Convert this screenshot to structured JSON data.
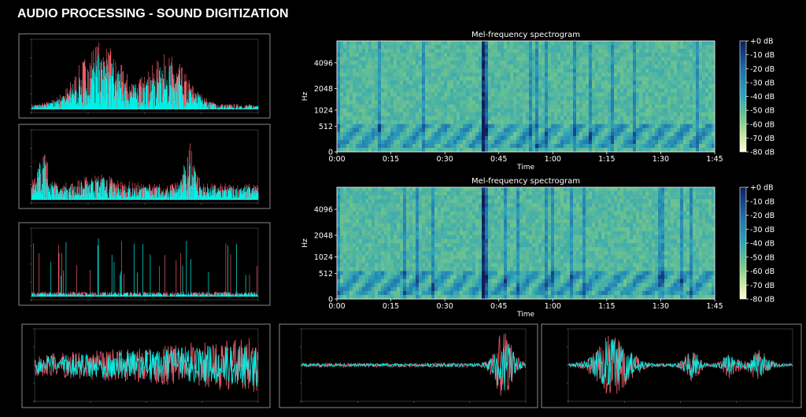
{
  "header": {
    "title": "AUDIO PROCESSING - SOUND DIGITIZATION"
  },
  "spectrograms": [
    {
      "title": "Mel-frequency spectrogram",
      "x_label": "Time",
      "y_label": "Hz",
      "y_scale": "mel",
      "xlim": [
        0,
        105
      ],
      "xticks": [
        {
          "value": 0,
          "label": "0:00"
        },
        {
          "value": 15,
          "label": "0:15"
        },
        {
          "value": 30,
          "label": "0:30"
        },
        {
          "value": 45,
          "label": "0:45"
        },
        {
          "value": 60,
          "label": "1:00"
        },
        {
          "value": 75,
          "label": "1:15"
        },
        {
          "value": 90,
          "label": "1:30"
        },
        {
          "value": 105,
          "label": "1:45"
        }
      ],
      "ylim": [
        0,
        7000
      ],
      "yticks": [
        0,
        512,
        1024,
        2048,
        4096
      ],
      "clim": [
        -80,
        0
      ],
      "colorbar_ticks": [
        {
          "value": 0,
          "label": "+0 dB"
        },
        {
          "value": -10,
          "label": "-10 dB"
        },
        {
          "value": -20,
          "label": "-20 dB"
        },
        {
          "value": -30,
          "label": "-30 dB"
        },
        {
          "value": -40,
          "label": "-40 dB"
        },
        {
          "value": -50,
          "label": "-50 dB"
        },
        {
          "value": -60,
          "label": "-60 dB"
        },
        {
          "value": -70,
          "label": "-70 dB"
        },
        {
          "value": -80,
          "label": "-80 dB"
        }
      ]
    },
    {
      "title": "Mel-frequency spectrogram",
      "x_label": "Time",
      "y_label": "Hz",
      "y_scale": "mel",
      "xlim": [
        0,
        105
      ],
      "xticks": [
        {
          "value": 0,
          "label": "0:00"
        },
        {
          "value": 15,
          "label": "0:15"
        },
        {
          "value": 30,
          "label": "0:30"
        },
        {
          "value": 45,
          "label": "0:45"
        },
        {
          "value": 60,
          "label": "1:00"
        },
        {
          "value": 75,
          "label": "1:15"
        },
        {
          "value": 90,
          "label": "1:30"
        },
        {
          "value": 105,
          "label": "1:45"
        }
      ],
      "ylim": [
        0,
        7000
      ],
      "yticks": [
        0,
        512,
        1024,
        2048,
        4096
      ],
      "clim": [
        -80,
        0
      ],
      "colorbar_ticks": [
        {
          "value": 0,
          "label": "+0 dB"
        },
        {
          "value": -10,
          "label": "-10 dB"
        },
        {
          "value": -20,
          "label": "-20 dB"
        },
        {
          "value": -30,
          "label": "-30 dB"
        },
        {
          "value": -40,
          "label": "-40 dB"
        },
        {
          "value": -50,
          "label": "-50 dB"
        },
        {
          "value": -60,
          "label": "-60 dB"
        },
        {
          "value": -70,
          "label": "-70 dB"
        },
        {
          "value": -80,
          "label": "-80 dB"
        }
      ]
    }
  ]
}
